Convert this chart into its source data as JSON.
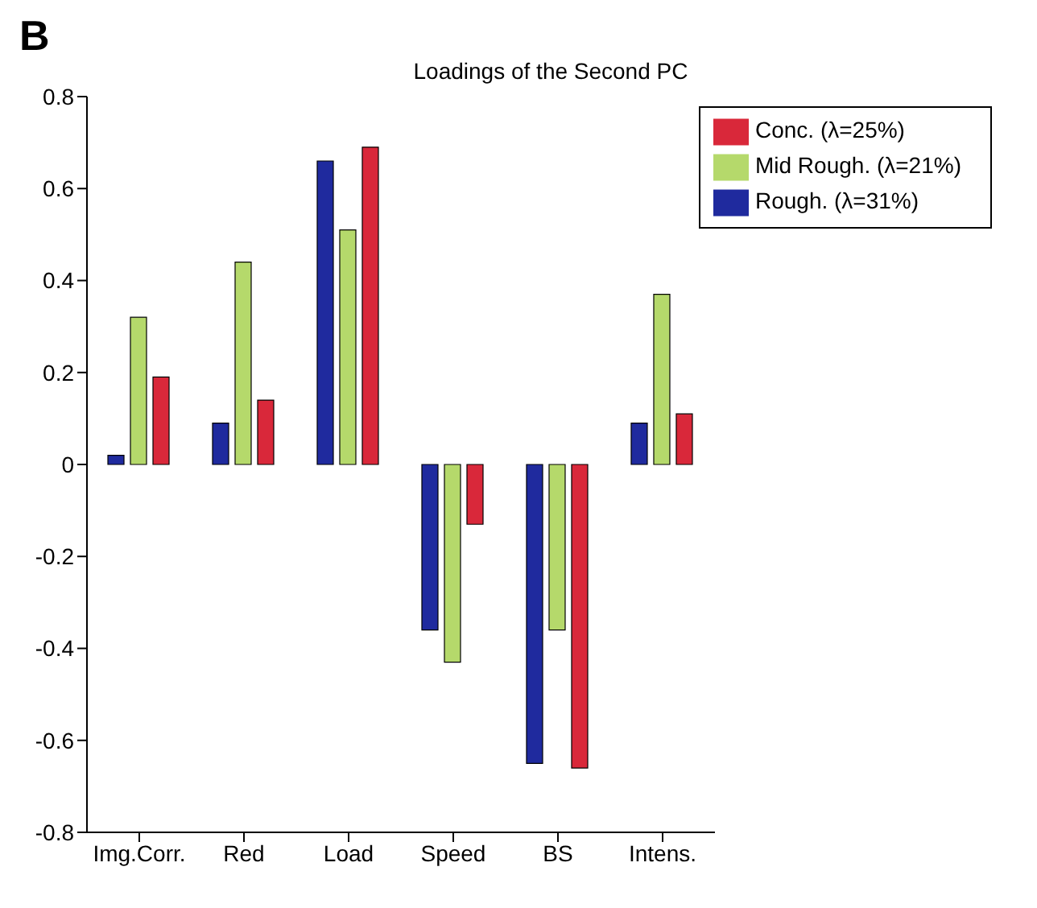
{
  "chart_data": {
    "type": "bar",
    "title": "Loadings of the Second PC",
    "annotations": [
      "B"
    ],
    "categories": [
      "Img.Corr.",
      "Red",
      "Load",
      "Speed",
      "BS",
      "Intens."
    ],
    "series": [
      {
        "name": "Rough. (λ=31%)",
        "color": "#1f2a9e",
        "values": [
          0.02,
          0.09,
          0.66,
          -0.36,
          -0.65,
          0.09
        ]
      },
      {
        "name": "Mid Rough. (λ=21%)",
        "color": "#b5d96b",
        "values": [
          0.32,
          0.44,
          0.51,
          -0.43,
          -0.36,
          0.37
        ]
      },
      {
        "name": "Conc. (λ=25%)",
        "color": "#d9283a",
        "values": [
          0.19,
          0.14,
          0.69,
          -0.13,
          -0.66,
          0.11
        ]
      }
    ],
    "ylim": [
      -0.8,
      0.8
    ],
    "yticks": [
      -0.8,
      -0.6,
      -0.4,
      -0.2,
      0,
      0.2,
      0.4,
      0.6,
      0.8
    ],
    "grid": false,
    "legend": "top right"
  }
}
